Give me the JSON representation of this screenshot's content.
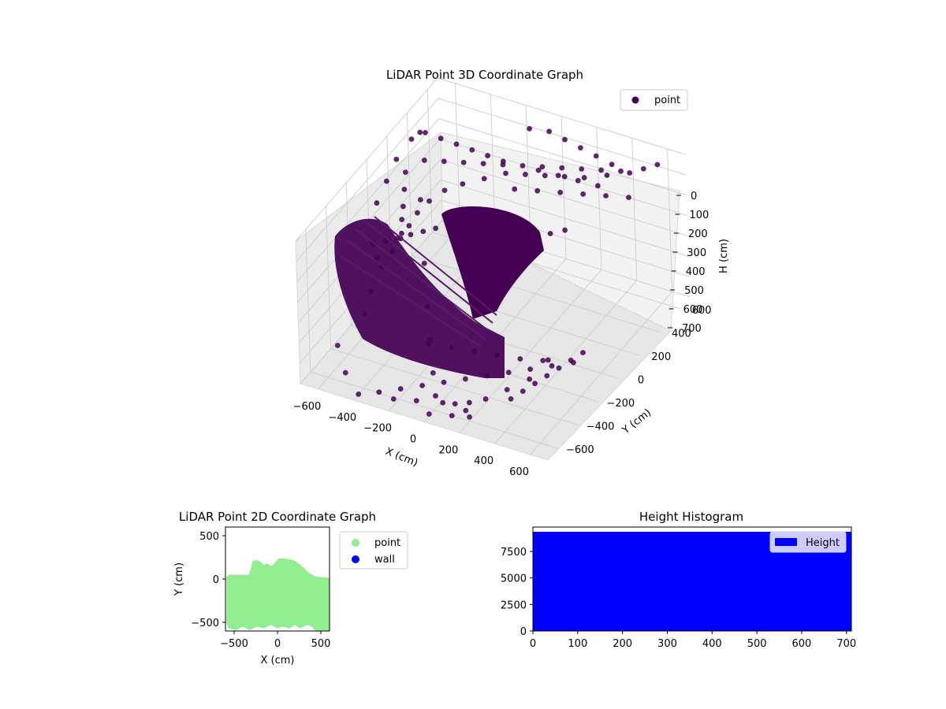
{
  "colors": {
    "point_3d": "#440154",
    "point_2d": "#90ee90",
    "wall": "#0000ff",
    "histogram": "#0000ff",
    "pane": "#f2f2f2",
    "grid": "#d0d0d0"
  },
  "chart_data": [
    {
      "type": "scatter",
      "projection": "3d",
      "title": "LiDAR Point 3D Coordinate Graph",
      "xlabel": "X (cm)",
      "ylabel": "Y (cm)",
      "zlabel": "H (cm)",
      "xlim": [
        -700,
        700
      ],
      "ylim": [
        -700,
        700
      ],
      "zlim": [
        0,
        700
      ],
      "z_inverted": true,
      "xticks": [
        "−600",
        "−400",
        "−200",
        "0",
        "200",
        "400",
        "600"
      ],
      "yticks": [
        "−600",
        "−400",
        "−200",
        "0",
        "200",
        "400",
        "600"
      ],
      "zticks": [
        "0",
        "100",
        "200",
        "300",
        "400",
        "500",
        "600",
        "700"
      ],
      "grid": true,
      "legend_position": "upper-right",
      "series": [
        {
          "name": "point",
          "color": "#440154",
          "points": [
            [
              0,
              -50,
              40
            ],
            [
              60,
              -40,
              60
            ],
            [
              120,
              -20,
              80
            ],
            [
              180,
              0,
              100
            ],
            [
              240,
              30,
              120
            ],
            [
              300,
              60,
              130
            ],
            [
              360,
              100,
              120
            ],
            [
              -60,
              -70,
              60
            ],
            [
              -120,
              -90,
              90
            ],
            [
              -180,
              -110,
              120
            ],
            [
              -240,
              -130,
              140
            ],
            [
              -300,
              -150,
              160
            ],
            [
              -360,
              -170,
              180
            ],
            [
              -420,
              -190,
              200
            ],
            [
              -480,
              -210,
              220
            ],
            [
              -540,
              -230,
              240
            ],
            [
              100,
              300,
              10
            ],
            [
              200,
              320,
              20
            ],
            [
              300,
              340,
              30
            ],
            [
              400,
              360,
              40
            ],
            [
              -100,
              300,
              20
            ],
            [
              -200,
              320,
              30
            ],
            [
              -300,
              340,
              40
            ],
            [
              -400,
              360,
              50
            ],
            [
              -500,
              380,
              60
            ],
            [
              -600,
              400,
              70
            ],
            [
              -550,
              250,
              300
            ],
            [
              -450,
              100,
              500
            ],
            [
              -350,
              -50,
              600
            ],
            [
              -250,
              -200,
              650
            ],
            [
              -150,
              -350,
              700
            ],
            [
              -50,
              -500,
              700
            ],
            [
              50,
              -600,
              650
            ],
            [
              150,
              -650,
              600
            ],
            [
              250,
              -680,
              550
            ],
            [
              350,
              -690,
              500
            ],
            [
              450,
              -650,
              450
            ],
            [
              550,
              -600,
              400
            ],
            [
              600,
              -500,
              350
            ],
            [
              -600,
              -500,
              600
            ],
            [
              -500,
              -600,
              650
            ],
            [
              -400,
              -650,
              700
            ],
            [
              -300,
              -620,
              680
            ],
            [
              -200,
              -580,
              660
            ],
            [
              -100,
              -540,
              640
            ],
            [
              0,
              -500,
              620
            ],
            [
              100,
              -460,
              600
            ],
            [
              200,
              -420,
              580
            ],
            [
              300,
              -380,
              560
            ],
            [
              400,
              -340,
              540
            ],
            [
              500,
              -300,
              520
            ],
            [
              600,
              -260,
              500
            ],
            [
              -650,
              0,
              200
            ],
            [
              -650,
              100,
              150
            ],
            [
              -650,
              200,
              100
            ],
            [
              -600,
              -100,
              400
            ],
            [
              -580,
              -200,
              500
            ],
            [
              -560,
              -300,
              550
            ],
            [
              500,
              500,
              30
            ],
            [
              400,
              450,
              40
            ],
            [
              300,
              400,
              50
            ],
            [
              200,
              380,
              60
            ],
            [
              100,
              360,
              70
            ],
            [
              0,
              340,
              80
            ],
            [
              -100,
              320,
              90
            ],
            [
              -200,
              280,
              120
            ],
            [
              -300,
              240,
              150
            ],
            [
              -380,
              200,
              180
            ],
            [
              -440,
              150,
              220
            ],
            [
              -480,
              100,
              260
            ],
            [
              -500,
              50,
              300
            ],
            [
              -520,
              0,
              340
            ],
            [
              -540,
              -50,
              380
            ],
            [
              -560,
              -120,
              420
            ],
            [
              -200,
              -300,
              600
            ],
            [
              -100,
              -250,
              620
            ],
            [
              0,
              -200,
              640
            ],
            [
              100,
              -150,
              660
            ],
            [
              200,
              -100,
              680
            ],
            [
              300,
              -50,
              690
            ],
            [
              -600,
              200,
              150
            ],
            [
              -580,
              150,
              200
            ],
            [
              -560,
              100,
              250
            ],
            [
              -540,
              50,
              280
            ],
            [
              -520,
              10,
              320
            ],
            [
              50,
              150,
              30
            ],
            [
              150,
              200,
              40
            ],
            [
              250,
              250,
              50
            ],
            [
              350,
              300,
              60
            ],
            [
              450,
              350,
              70
            ],
            [
              550,
              400,
              80
            ],
            [
              600,
              600,
              20
            ],
            [
              550,
              550,
              25
            ],
            [
              450,
              500,
              35
            ],
            [
              350,
              480,
              45
            ],
            [
              250,
              460,
              55
            ],
            [
              150,
              440,
              65
            ],
            [
              50,
              420,
              75
            ],
            [
              -50,
              400,
              85
            ],
            [
              -150,
              380,
              95
            ],
            [
              -250,
              360,
              105
            ],
            [
              -350,
              340,
              115
            ],
            [
              -450,
              320,
              125
            ],
            [
              -550,
              300,
              135
            ],
            [
              200,
              -600,
              680
            ],
            [
              150,
              -550,
              690
            ],
            [
              100,
              -600,
              700
            ],
            [
              0,
              -650,
              690
            ],
            [
              -100,
              -600,
              680
            ],
            [
              -200,
              -650,
              670
            ],
            [
              380,
              -500,
              600
            ],
            [
              420,
              -450,
              580
            ],
            [
              460,
              -400,
              560
            ],
            [
              500,
              -350,
              540
            ],
            [
              540,
              -300,
              520
            ],
            [
              580,
              -250,
              500
            ],
            [
              620,
              -200,
              480
            ],
            [
              -620,
              300,
              50
            ],
            [
              -600,
              350,
              40
            ],
            [
              -580,
              400,
              30
            ],
            [
              -500,
              450,
              20
            ],
            [
              -400,
              500,
              15
            ],
            [
              -300,
              520,
              12
            ],
            [
              -200,
              540,
              10
            ],
            [
              -100,
              560,
              8
            ],
            [
              0,
              580,
              6
            ],
            [
              100,
              560,
              8
            ],
            [
              200,
              540,
              10
            ],
            [
              300,
              520,
              12
            ],
            [
              400,
              500,
              15
            ]
          ]
        }
      ]
    },
    {
      "type": "scatter",
      "title": "LiDAR Point 2D Coordinate Graph",
      "xlabel": "X (cm)",
      "ylabel": "Y (cm)",
      "xlim": [
        -600,
        600
      ],
      "ylim": [
        -600,
        600
      ],
      "xticks": [
        "−500",
        "0",
        "500"
      ],
      "yticks": [
        "−500",
        "0",
        "500"
      ],
      "grid": false,
      "legend_position": "outside-right",
      "series": [
        {
          "name": "point",
          "color": "#90ee90",
          "outline": [
            [
              -580,
              20
            ],
            [
              -560,
              40
            ],
            [
              -320,
              40
            ],
            [
              -300,
              120
            ],
            [
              -280,
              200
            ],
            [
              -240,
              210
            ],
            [
              -200,
              190
            ],
            [
              -160,
              150
            ],
            [
              -120,
              170
            ],
            [
              -80,
              140
            ],
            [
              -40,
              160
            ],
            [
              -10,
              200
            ],
            [
              20,
              230
            ],
            [
              80,
              230
            ],
            [
              120,
              220
            ],
            [
              180,
              210
            ],
            [
              240,
              170
            ],
            [
              300,
              120
            ],
            [
              360,
              60
            ],
            [
              440,
              20
            ],
            [
              520,
              10
            ],
            [
              600,
              5
            ],
            [
              600,
              -600
            ],
            [
              450,
              -600
            ],
            [
              400,
              -540
            ],
            [
              340,
              -520
            ],
            [
              260,
              -560
            ],
            [
              200,
              -520
            ],
            [
              140,
              -560
            ],
            [
              60,
              -540
            ],
            [
              0,
              -560
            ],
            [
              -80,
              -520
            ],
            [
              -160,
              -560
            ],
            [
              -240,
              -540
            ],
            [
              -320,
              -580
            ],
            [
              -400,
              -540
            ],
            [
              -480,
              -580
            ],
            [
              -560,
              -560
            ],
            [
              -580,
              -500
            ]
          ]
        },
        {
          "name": "wall",
          "color": "#0000ff",
          "points": []
        }
      ]
    },
    {
      "type": "bar",
      "title": "Height Histogram",
      "xlim": [
        0,
        711
      ],
      "ylim": [
        0,
        9800
      ],
      "xticks": [
        0,
        100,
        200,
        300,
        400,
        500,
        600,
        700
      ],
      "yticks": [
        0,
        2500,
        5000,
        7500
      ],
      "grid": false,
      "legend_position": "upper-right",
      "series": [
        {
          "name": "Height",
          "color": "#0000ff",
          "bin_width": 1,
          "bin_start": 0,
          "bin_end": 711,
          "count": 9350
        }
      ]
    }
  ]
}
